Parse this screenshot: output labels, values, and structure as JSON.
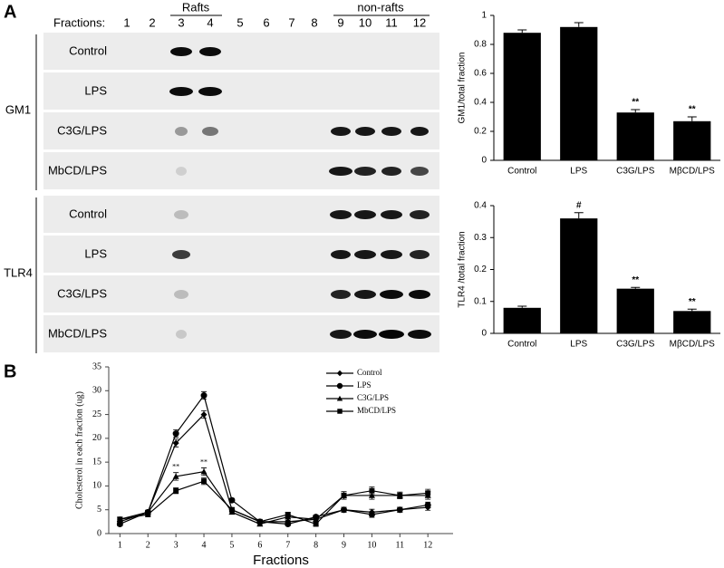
{
  "blot": {
    "panel_label": "A",
    "fractions_label": "Fractions:",
    "fractions": [
      1,
      2,
      3,
      4,
      5,
      6,
      7,
      8,
      9,
      10,
      11,
      12
    ],
    "rafts_label": "Rafts",
    "nonrafts_label": "non-rafts",
    "groups": [
      {
        "name": "GM1",
        "rows": [
          "Control",
          "LPS",
          "C3G/LPS",
          "MbCD/LPS"
        ]
      },
      {
        "name": "TLR4",
        "rows": [
          "Control",
          "LPS",
          "C3G/LPS",
          "MbCD/LPS"
        ]
      }
    ]
  },
  "panel_b_label": "B",
  "chart_data": [
    {
      "type": "bar",
      "ylabel": "GM1/total fraction",
      "categories": [
        "Control",
        "LPS",
        "C3G/LPS",
        "MβCD/LPS"
      ],
      "values": [
        0.88,
        0.92,
        0.33,
        0.27
      ],
      "errors": [
        0.02,
        0.03,
        0.02,
        0.03
      ],
      "annotations": [
        null,
        null,
        "**",
        "**"
      ],
      "color": "#000000",
      "ylim": [
        0,
        1
      ],
      "yticks": [
        0,
        0.2,
        0.4,
        0.6,
        0.8,
        1
      ]
    },
    {
      "type": "bar",
      "ylabel": "TLR4 /total fraction",
      "categories": [
        "Control",
        "LPS",
        "C3G/LPS",
        "MβCD/LPS"
      ],
      "values": [
        0.08,
        0.36,
        0.14,
        0.07
      ],
      "errors": [
        0.005,
        0.018,
        0.004,
        0.006
      ],
      "annotations": [
        null,
        "#",
        "**",
        "**"
      ],
      "color": "#000000",
      "ylim": [
        0,
        0.4
      ],
      "yticks": [
        0,
        0.1,
        0.2,
        0.3,
        0.4
      ]
    },
    {
      "type": "line",
      "xlabel": "Fractions",
      "ylabel": "Cholesterol in each fraction (ug)",
      "x": [
        1,
        2,
        3,
        4,
        5,
        6,
        7,
        8,
        9,
        10,
        11,
        12
      ],
      "xlim": [
        0.6,
        12.9
      ],
      "xticks": [
        1,
        2,
        3,
        4,
        5,
        6,
        7,
        8,
        9,
        10,
        11,
        12
      ],
      "ylim": [
        0,
        35
      ],
      "yticks": [
        0,
        5,
        10,
        15,
        20,
        25,
        30,
        35
      ],
      "series": [
        {
          "name": "Control",
          "color": "#000000",
          "marker": "diamond",
          "values": [
            2.5,
            4.5,
            19,
            25,
            5,
            2.5,
            2.5,
            3,
            5,
            4.5,
            5,
            5.5
          ],
          "errors": [
            0.5,
            0.4,
            0.8,
            0.8,
            0.4,
            0.3,
            0.3,
            0.4,
            0.5,
            0.6,
            0.5,
            0.6
          ]
        },
        {
          "name": "LPS",
          "color": "#000000",
          "marker": "circle",
          "values": [
            2,
            4.5,
            21,
            29,
            7,
            2.5,
            2,
            3.5,
            5,
            4,
            5,
            6
          ],
          "errors": [
            0.4,
            0.4,
            0.8,
            0.8,
            0.4,
            0.3,
            0.3,
            0.4,
            0.5,
            0.6,
            0.5,
            0.6
          ]
        },
        {
          "name": "C3G/LPS",
          "color": "#000000",
          "marker": "triangle",
          "values": [
            3,
            4.5,
            12,
            13,
            4.5,
            2,
            3.5,
            3,
            8,
            8,
            8,
            8
          ],
          "errors": [
            0.4,
            0.4,
            0.8,
            0.8,
            0.4,
            0.3,
            0.4,
            0.4,
            0.8,
            0.8,
            0.7,
            0.8
          ],
          "annotations": [
            null,
            null,
            "**",
            "**",
            null,
            null,
            null,
            null,
            null,
            null,
            null,
            null
          ]
        },
        {
          "name": "MbCD/LPS",
          "color": "#000000",
          "marker": "square",
          "values": [
            3,
            4,
            9,
            11,
            5,
            2.5,
            4,
            2,
            8,
            9,
            8,
            8.5
          ],
          "errors": [
            0.4,
            0.4,
            0.6,
            0.7,
            0.4,
            0.3,
            0.4,
            0.4,
            0.8,
            0.8,
            0.7,
            0.8
          ]
        }
      ]
    }
  ]
}
